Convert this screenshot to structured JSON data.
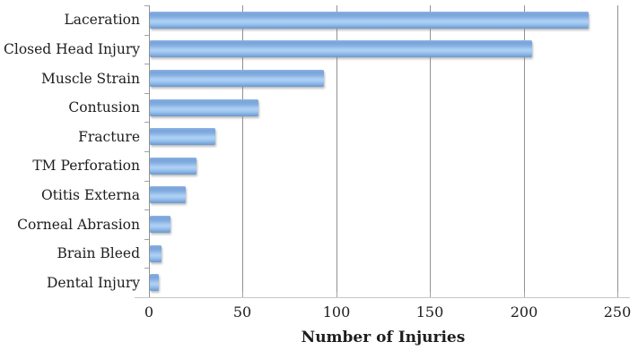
{
  "chart_data": {
    "type": "bar",
    "orientation": "horizontal",
    "xlabel": "Number of Injuries",
    "categories": [
      "Laceration",
      "Closed Head Injury",
      "Muscle Strain",
      "Contusion",
      "Fracture",
      "TM Perforation",
      "Otitis Externa",
      "Corneal Abrasion",
      "Brain Bleed",
      "Dental Injury"
    ],
    "values": [
      234,
      204,
      93,
      58,
      35,
      25,
      19,
      11,
      6,
      5
    ],
    "x_ticks": [
      0,
      50,
      100,
      150,
      200,
      250
    ],
    "xlim": [
      0,
      250
    ],
    "grid": "vertical",
    "legend": "none",
    "colors": {
      "bar_gradient_top": "#8CB3E3",
      "bar_gradient_mid": "#A9CDF2",
      "bar_gradient_bottom": "#6D9AD0",
      "gridline": "#919191",
      "axis_line": "#C6C6C6",
      "text": "#1E1E1E"
    }
  }
}
